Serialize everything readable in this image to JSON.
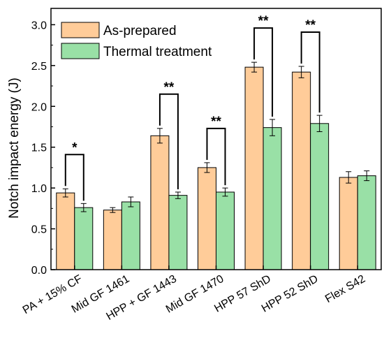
{
  "chart_data": {
    "type": "bar",
    "title": "",
    "xlabel": "",
    "ylabel": "Notch impact energy (J)",
    "ylim": [
      0,
      3.2
    ],
    "yticks": [
      "0.0",
      "0.5",
      "1.0",
      "1.5",
      "2.0",
      "2.5",
      "3.0"
    ],
    "grid": false,
    "legend": "top-left",
    "categories": [
      "PA + 15% CF",
      "Mid GF 1461",
      "HPP + GF 1443",
      "Mid GF 1470",
      "HPP 57 ShD",
      "HPP 52 ShD",
      "Flex S42"
    ],
    "series": [
      {
        "name": "As-prepared",
        "color": "#FFCC99",
        "values": [
          0.94,
          0.73,
          1.64,
          1.25,
          2.48,
          2.42,
          1.13
        ],
        "errors": [
          0.05,
          0.03,
          0.09,
          0.06,
          0.06,
          0.07,
          0.07
        ]
      },
      {
        "name": "Thermal treatment",
        "color": "#99E0A6",
        "values": [
          0.76,
          0.83,
          0.91,
          0.95,
          1.74,
          1.79,
          1.15
        ],
        "errors": [
          0.05,
          0.06,
          0.04,
          0.05,
          0.1,
          0.1,
          0.06
        ]
      }
    ],
    "significance": [
      {
        "category": "PA + 15% CF",
        "label": "*"
      },
      {
        "category": "HPP + GF 1443",
        "label": "**"
      },
      {
        "category": "Mid GF 1470",
        "label": "**"
      },
      {
        "category": "HPP 57 ShD",
        "label": "**"
      },
      {
        "category": "HPP 52 ShD",
        "label": "**"
      }
    ]
  }
}
